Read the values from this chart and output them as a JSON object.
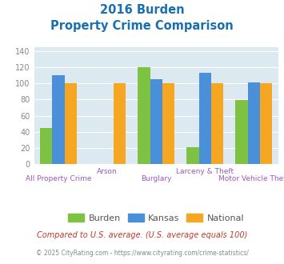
{
  "title_line1": "2016 Burden",
  "title_line2": "Property Crime Comparison",
  "title_color": "#1a6faf",
  "categories": [
    "All Property Crime",
    "Arson",
    "Burglary",
    "Larceny & Theft",
    "Motor Vehicle Theft"
  ],
  "burden_values": [
    45,
    0,
    120,
    21,
    79
  ],
  "kansas_values": [
    110,
    0,
    105,
    113,
    101
  ],
  "national_values": [
    100,
    100,
    100,
    100,
    100
  ],
  "burden_color": "#7dc242",
  "kansas_color": "#4a90d9",
  "national_color": "#f5a623",
  "ylim": [
    0,
    145
  ],
  "yticks": [
    0,
    20,
    40,
    60,
    80,
    100,
    120,
    140
  ],
  "background_color": "#dce9f0",
  "legend_labels": [
    "Burden",
    "Kansas",
    "National"
  ],
  "footnote1": "Compared to U.S. average. (U.S. average equals 100)",
  "footnote2": "© 2025 CityRating.com - https://www.cityrating.com/crime-statistics/",
  "footnote1_color": "#c0392b",
  "footnote2_color": "#7f8c8d",
  "bar_width": 0.25,
  "grid_color": "#ffffff",
  "label_color": "#9b59b6",
  "tick_color": "#888888"
}
